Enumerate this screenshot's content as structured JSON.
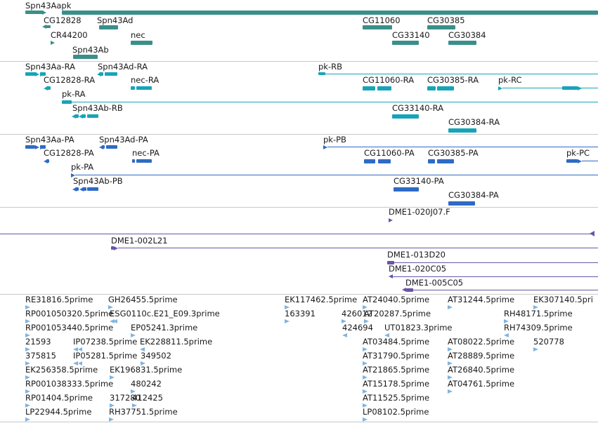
{
  "colors": {
    "gene": "#3a8f8a",
    "mrna": "#17a4b8",
    "protein": "#2e6bc4",
    "clone": "#6a55a8",
    "est": "#7fb4df",
    "separator": "#c8c8c8",
    "text": "#1a1a1a"
  },
  "tracks": {
    "genes": {
      "labels": [
        "Spn43Aapk",
        "CG12828",
        "Spn43Ad",
        "CR44200",
        "nec",
        "Spn43Ab",
        "CG11060",
        "CG30385",
        "CG33140",
        "CG30384"
      ]
    },
    "mrnas": {
      "labels": [
        "Spn43Aa-RA",
        "Spn43Ad-RA",
        "pk-RB",
        "CG12828-RA",
        "nec-RA",
        "CG11060-RA",
        "CG30385-RA",
        "pk-RC",
        "pk-RA",
        "Spn43Ab-RB",
        "CG33140-RA",
        "CG30384-RA"
      ]
    },
    "proteins": {
      "labels": [
        "Spn43Aa-PA",
        "Spn43Ad-PA",
        "pk-PB",
        "CG12828-PA",
        "nec-PA",
        "CG11060-PA",
        "CG30385-PA",
        "pk-PC",
        "pk-PA",
        "Spn43Ab-PB",
        "CG33140-PA",
        "CG30384-PA"
      ]
    },
    "clones": {
      "labels": [
        "DME1-020J07.F",
        "DME1-002L21",
        "DME1-013D20",
        "DME1-020C05",
        "DME1-005C05"
      ]
    },
    "ests": {
      "labels": [
        "RE31816.5prime",
        "GH26455.5prime",
        "EK117462.5prime",
        "AT24040.5prime",
        "AT31244.5prime",
        "EK307140.5pri",
        "RP001050320.5prime",
        "ESG0110c.E21_E09.3prime",
        "163391",
        "426012",
        "AT20287.5prime",
        "RH48171.5prime",
        "RP001053440.5prime",
        "EP05241.3prime",
        "424694",
        "UT01823.3prime",
        "RH74309.5prime",
        "21593",
        "IP07238.5prime",
        "EK228811.5prime",
        "AT03484.5prime",
        "AT08022.5prime",
        "520778",
        "375815",
        "IP05281.5prime",
        "349502",
        "AT31790.5prime",
        "AT28889.5prime",
        "EK256358.5prime",
        "EK196831.5prime",
        "AT21865.5prime",
        "AT26840.5prime",
        "RP001038333.5prime",
        "480242",
        "AT15178.5prime",
        "AT04761.5prime",
        "RP01404.5prime",
        "317280",
        "412425",
        "AT11525.5prime",
        "LP22944.5prime",
        "RH37751.5prime",
        "LP08102.5prime"
      ]
    }
  }
}
